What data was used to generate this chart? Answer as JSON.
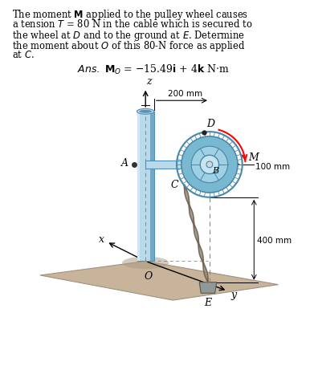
{
  "background_color": "#ffffff",
  "ground_color": "#c8b49a",
  "ground_edge": "#a09080",
  "ground_shadow": "#b8a48a",
  "pole_color_light": "#b8daea",
  "pole_color_mid": "#90c4dc",
  "pole_color_dark": "#70aac8",
  "pole_edge": "#5090b8",
  "wheel_outer_color": "#90c8dc",
  "wheel_mid_color": "#78b8d0",
  "wheel_inner_color": "#a0d0e4",
  "wheel_hub_color": "#c8e4f0",
  "wheel_edge": "#4888a8",
  "cable_dark": "#706050",
  "cable_light": "#c0b090",
  "anchor_color": "#909898",
  "anchor_edge": "#505858",
  "dim_color": "#000000",
  "text_color": "#000000",
  "dim_200": "200 mm",
  "dim_100": "100 mm",
  "dim_400": "400 mm",
  "label_A": "A",
  "label_B": "B",
  "label_C": "C",
  "label_D": "D",
  "label_E": "E",
  "label_M": "M",
  "label_O": "O",
  "label_x": "x",
  "label_y": "y",
  "label_z": "z"
}
